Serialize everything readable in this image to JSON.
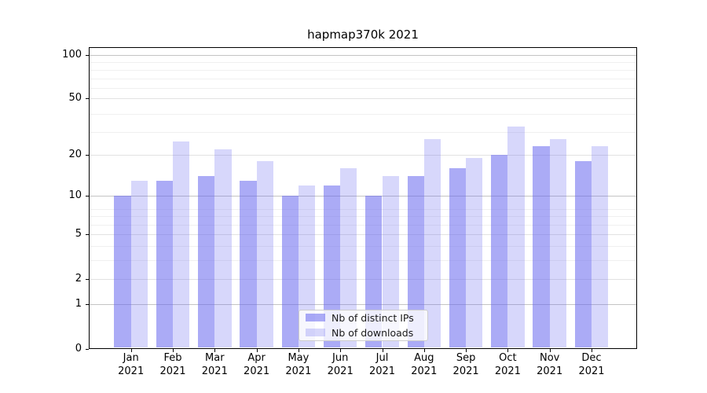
{
  "chart_data": {
    "type": "bar",
    "title": "hapmap370k 2021",
    "categories": [
      "Jan",
      "Feb",
      "Mar",
      "Apr",
      "May",
      "Jun",
      "Jul",
      "Aug",
      "Sep",
      "Oct",
      "Nov",
      "Dec"
    ],
    "year_label": "2021",
    "series": [
      {
        "name": "Nb of distinct IPs",
        "color": "rgba(102,102,238,0.55)",
        "values": [
          10,
          13,
          14,
          13,
          10,
          12,
          10,
          14,
          16,
          20,
          23,
          18
        ]
      },
      {
        "name": "Nb of downloads",
        "color": "rgba(102,102,238,0.26)",
        "values": [
          13,
          25,
          22,
          18,
          12,
          16,
          14,
          26,
          19,
          32,
          26,
          23
        ]
      }
    ],
    "yscale": "log1p",
    "ylim": [
      0,
      115
    ],
    "yticks": [
      0,
      1,
      2,
      5,
      10,
      20,
      50,
      100
    ],
    "decade_ticks": [
      1,
      10,
      100
    ],
    "minor_gridlines": [
      3,
      4,
      6,
      7,
      8,
      29,
      39,
      59,
      69,
      79,
      89
    ],
    "grid": "horizontal major and minor",
    "legend_position": "inside lower-center"
  }
}
